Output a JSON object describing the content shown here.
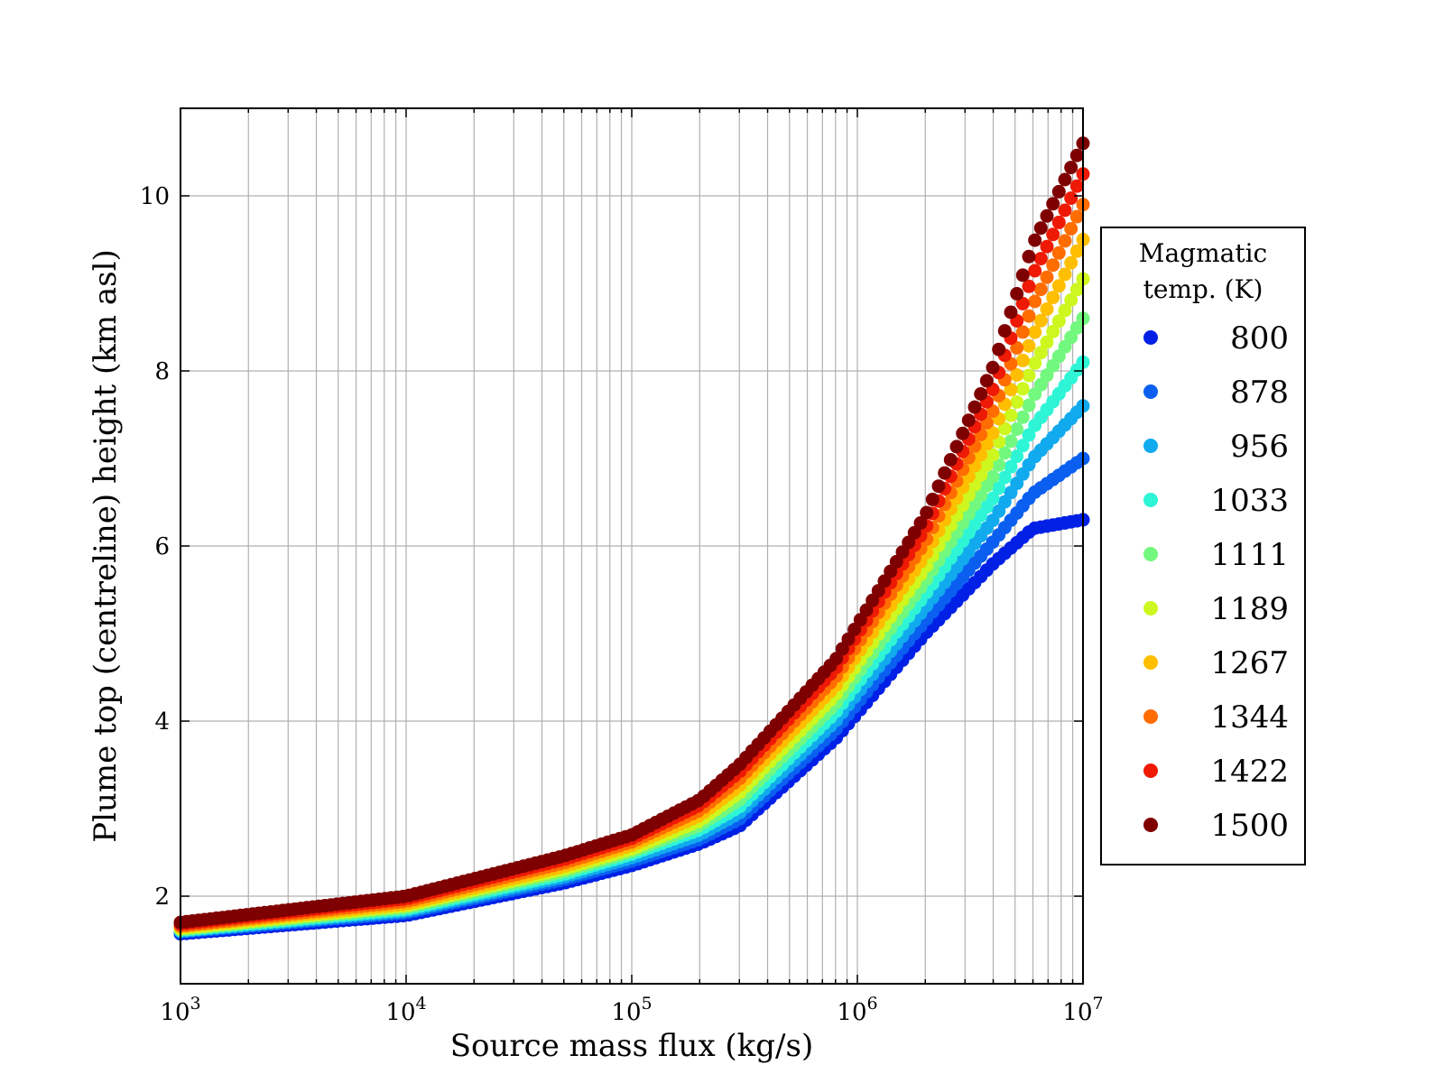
{
  "chart_data": {
    "type": "scatter",
    "title": "",
    "xlabel": "Source mass flux (kg/s)",
    "ylabel": "Plume top (centreline) height (km asl)",
    "xscale": "log",
    "xlim": [
      1000,
      10000000
    ],
    "ylim": [
      1.0,
      11.0
    ],
    "x_ticks": [
      {
        "value": 1000,
        "base": "10",
        "exp": "3"
      },
      {
        "value": 10000,
        "base": "10",
        "exp": "4"
      },
      {
        "value": 100000,
        "base": "10",
        "exp": "5"
      },
      {
        "value": 1000000,
        "base": "10",
        "exp": "6"
      },
      {
        "value": 10000000,
        "base": "10",
        "exp": "7"
      }
    ],
    "y_ticks": [
      {
        "value": 2,
        "label": "2"
      },
      {
        "value": 4,
        "label": "4"
      },
      {
        "value": 6,
        "label": "6"
      },
      {
        "value": 8,
        "label": "8"
      },
      {
        "value": 10,
        "label": "10"
      }
    ],
    "grid": true,
    "legend": {
      "title_line1": "Magmatic",
      "title_line2": "temp. (K)",
      "placement": "outside-right",
      "entries": [
        {
          "label": "800",
          "color": "#0020e6"
        },
        {
          "label": "878",
          "color": "#0a5ff0"
        },
        {
          "label": "956",
          "color": "#11aaee"
        },
        {
          "label": "1033",
          "color": "#2ef5d6"
        },
        {
          "label": "1111",
          "color": "#72f87e"
        },
        {
          "label": "1189",
          "color": "#cdf71f"
        },
        {
          "label": "1267",
          "color": "#ffbe00"
        },
        {
          "label": "1344",
          "color": "#ff6d00"
        },
        {
          "label": "1422",
          "color": "#ee1a05"
        },
        {
          "label": "1500",
          "color": "#7f0000"
        }
      ]
    },
    "series": [
      {
        "name": "800",
        "x": [
          1000,
          10000,
          50000,
          100000,
          200000,
          300000,
          800000,
          2000000,
          4000000,
          6000000,
          10000000
        ],
        "y": [
          1.57,
          1.78,
          2.15,
          2.35,
          2.6,
          2.8,
          3.8,
          5.0,
          5.8,
          6.2,
          6.3
        ]
      },
      {
        "name": "878",
        "x": [
          1000,
          10000,
          50000,
          100000,
          200000,
          300000,
          800000,
          2000000,
          4000000,
          6000000,
          10000000
        ],
        "y": [
          1.59,
          1.81,
          2.19,
          2.4,
          2.65,
          2.88,
          3.9,
          5.15,
          6.05,
          6.6,
          7.0
        ]
      },
      {
        "name": "956",
        "x": [
          1000,
          10000,
          50000,
          100000,
          200000,
          300000,
          800000,
          2000000,
          4000000,
          6000000,
          10000000
        ],
        "y": [
          1.6,
          1.83,
          2.22,
          2.44,
          2.7,
          2.95,
          4.0,
          5.3,
          6.3,
          7.0,
          7.6
        ]
      },
      {
        "name": "1033",
        "x": [
          1000,
          10000,
          50000,
          100000,
          200000,
          300000,
          800000,
          2000000,
          4000000,
          6000000,
          10000000
        ],
        "y": [
          1.61,
          1.85,
          2.25,
          2.48,
          2.76,
          3.02,
          4.1,
          5.45,
          6.55,
          7.35,
          8.1
        ]
      },
      {
        "name": "1111",
        "x": [
          1000,
          10000,
          50000,
          100000,
          200000,
          300000,
          800000,
          2000000,
          4000000,
          6000000,
          10000000
        ],
        "y": [
          1.62,
          1.87,
          2.28,
          2.51,
          2.81,
          3.1,
          4.2,
          5.6,
          6.8,
          7.7,
          8.6
        ]
      },
      {
        "name": "1189",
        "x": [
          1000,
          10000,
          50000,
          100000,
          200000,
          300000,
          800000,
          2000000,
          4000000,
          6000000,
          10000000
        ],
        "y": [
          1.63,
          1.89,
          2.31,
          2.54,
          2.86,
          3.18,
          4.3,
          5.75,
          7.05,
          8.05,
          9.05
        ]
      },
      {
        "name": "1267",
        "x": [
          1000,
          10000,
          50000,
          100000,
          200000,
          300000,
          800000,
          2000000,
          4000000,
          6000000,
          10000000
        ],
        "y": [
          1.65,
          1.91,
          2.34,
          2.58,
          2.92,
          3.26,
          4.4,
          5.9,
          7.3,
          8.4,
          9.5
        ]
      },
      {
        "name": "1344",
        "x": [
          1000,
          10000,
          50000,
          100000,
          200000,
          300000,
          800000,
          2000000,
          4000000,
          6000000,
          10000000
        ],
        "y": [
          1.66,
          1.94,
          2.38,
          2.62,
          2.98,
          3.34,
          4.5,
          6.05,
          7.55,
          8.75,
          9.9
        ]
      },
      {
        "name": "1422",
        "x": [
          1000,
          10000,
          50000,
          100000,
          200000,
          300000,
          800000,
          2000000,
          4000000,
          6000000,
          10000000
        ],
        "y": [
          1.68,
          1.97,
          2.42,
          2.66,
          3.04,
          3.42,
          4.6,
          6.2,
          7.8,
          9.1,
          10.25
        ]
      },
      {
        "name": "1500",
        "x": [
          1000,
          10000,
          50000,
          100000,
          200000,
          300000,
          800000,
          2000000,
          4000000,
          6000000,
          10000000
        ],
        "y": [
          1.7,
          2.0,
          2.46,
          2.7,
          3.1,
          3.5,
          4.7,
          6.35,
          8.05,
          9.45,
          10.6
        ]
      }
    ]
  }
}
